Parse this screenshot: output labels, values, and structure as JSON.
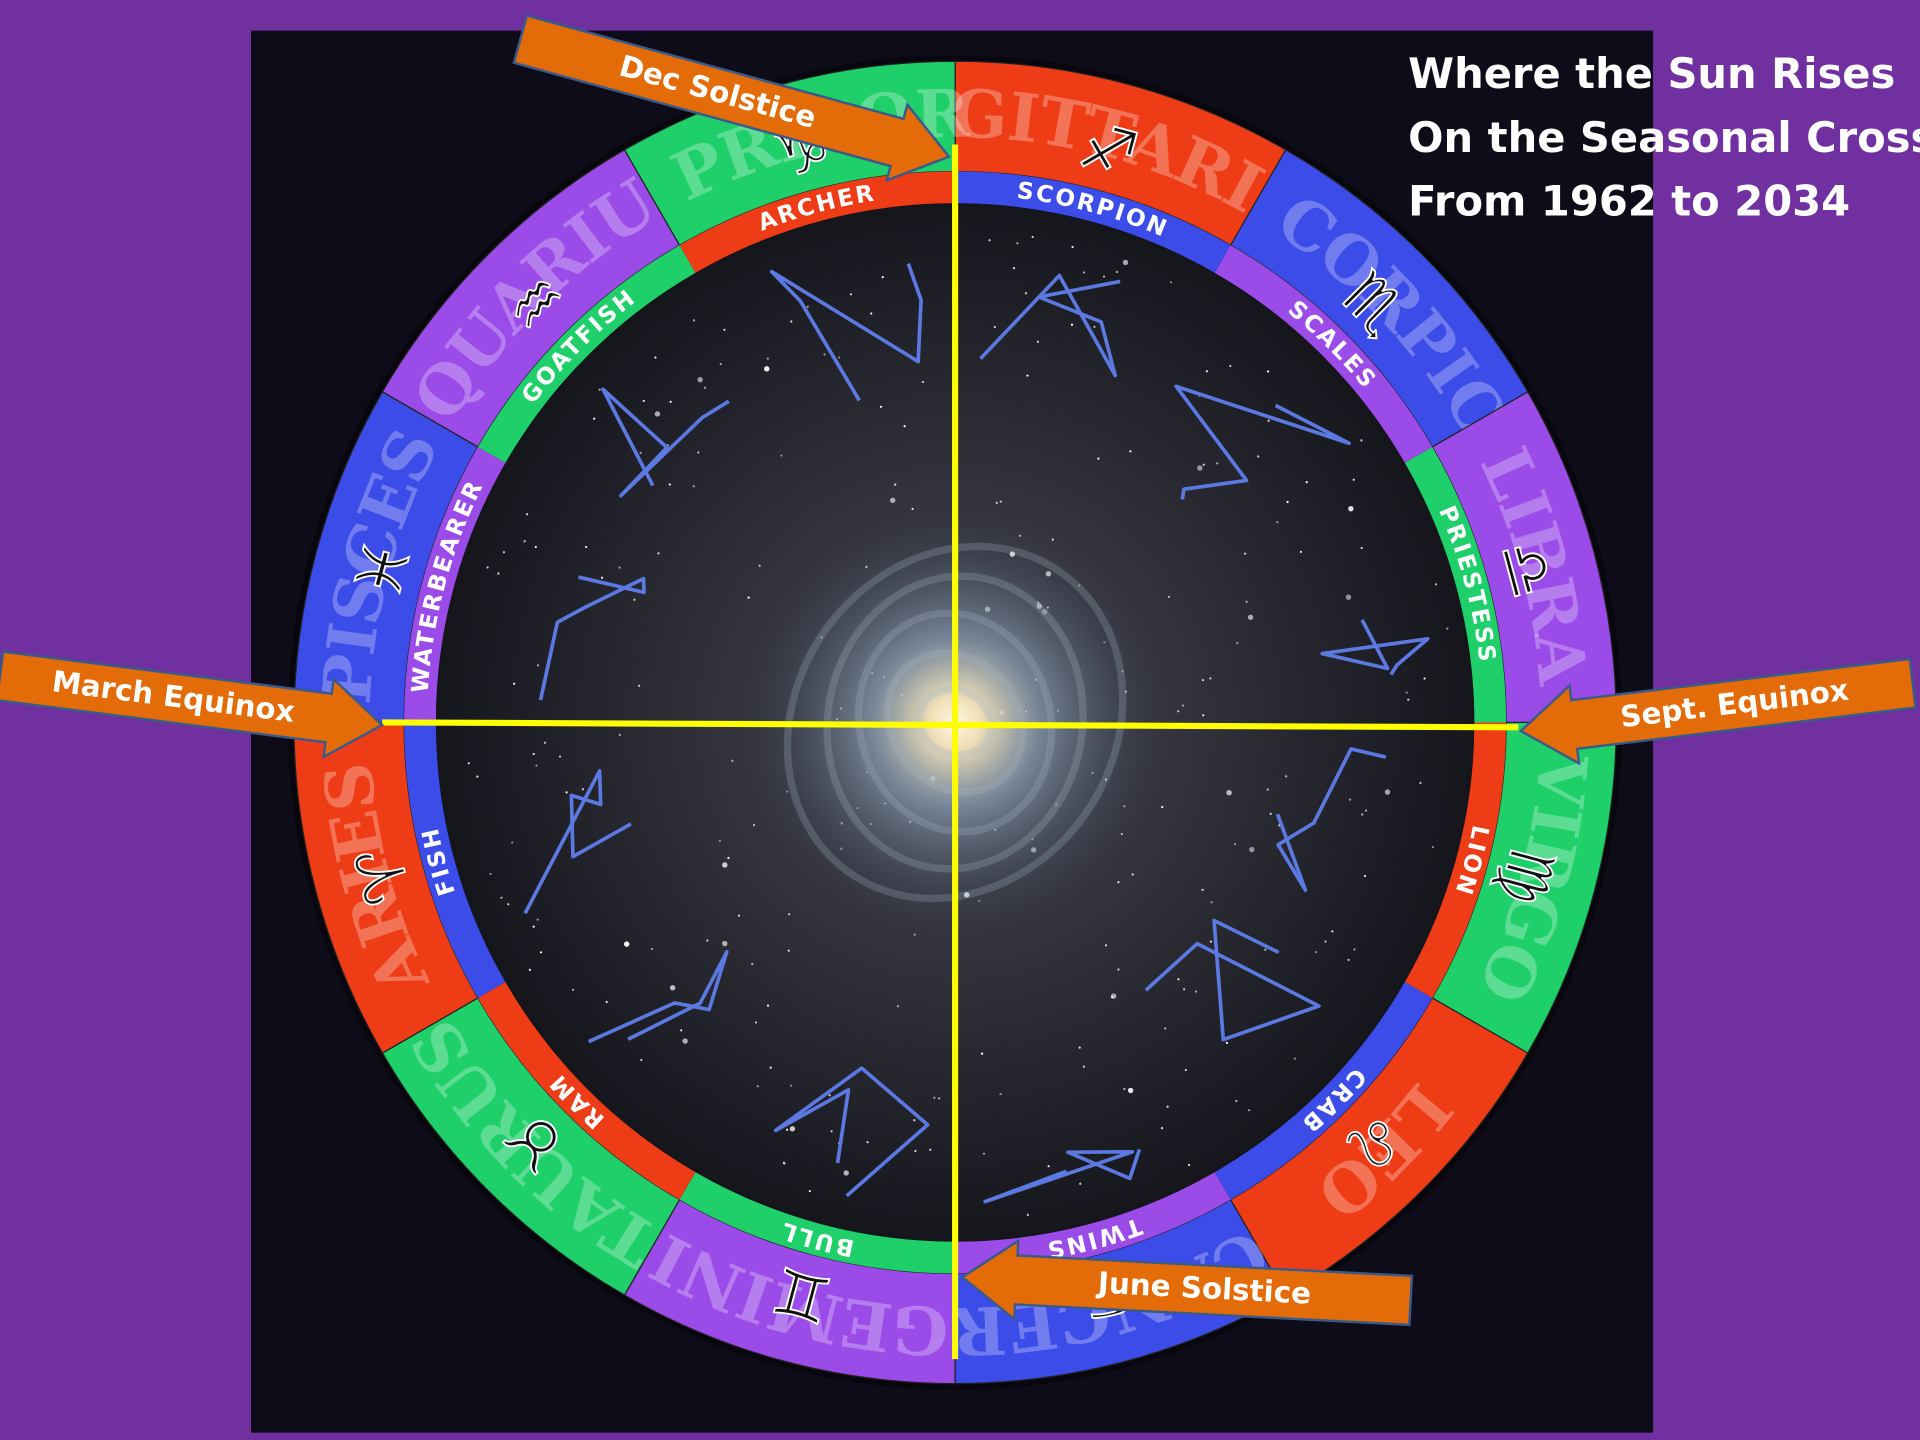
{
  "title": [
    "Where the Sun Rises",
    "On the Seasonal Cross",
    "From 1962 to 2034"
  ],
  "markers": [
    {
      "label": "Dec Solstice"
    },
    {
      "label": "March Equinox"
    },
    {
      "label": "Sept. Equinox"
    },
    {
      "label": "June Solstice"
    }
  ],
  "outer_ring": [
    {
      "name": "SAGITTARIUS",
      "symbol": "♐"
    },
    {
      "name": "SCORPIO",
      "symbol": "♏"
    },
    {
      "name": "LIBRA",
      "symbol": "♎"
    },
    {
      "name": "VIRGO",
      "symbol": "♍"
    },
    {
      "name": "LEO",
      "symbol": "♌"
    },
    {
      "name": "CANCER",
      "symbol": "♋"
    },
    {
      "name": "GEMINI",
      "symbol": "♊"
    },
    {
      "name": "TAURUS",
      "symbol": "♉"
    },
    {
      "name": "ARIES",
      "symbol": "♈"
    },
    {
      "name": "PISCES",
      "symbol": "♓"
    },
    {
      "name": "AQUARIUS",
      "symbol": "♒"
    },
    {
      "name": "CAPRICORN",
      "symbol": "♑"
    }
  ],
  "inner_ring": [
    "SCORPION",
    "SCALES",
    "PRIESTESS",
    "LION",
    "CRAB",
    "TWINS",
    "BULL",
    "RAM",
    "FISH",
    "WATERBEARER",
    "GOATFISH",
    "ARCHER"
  ]
}
